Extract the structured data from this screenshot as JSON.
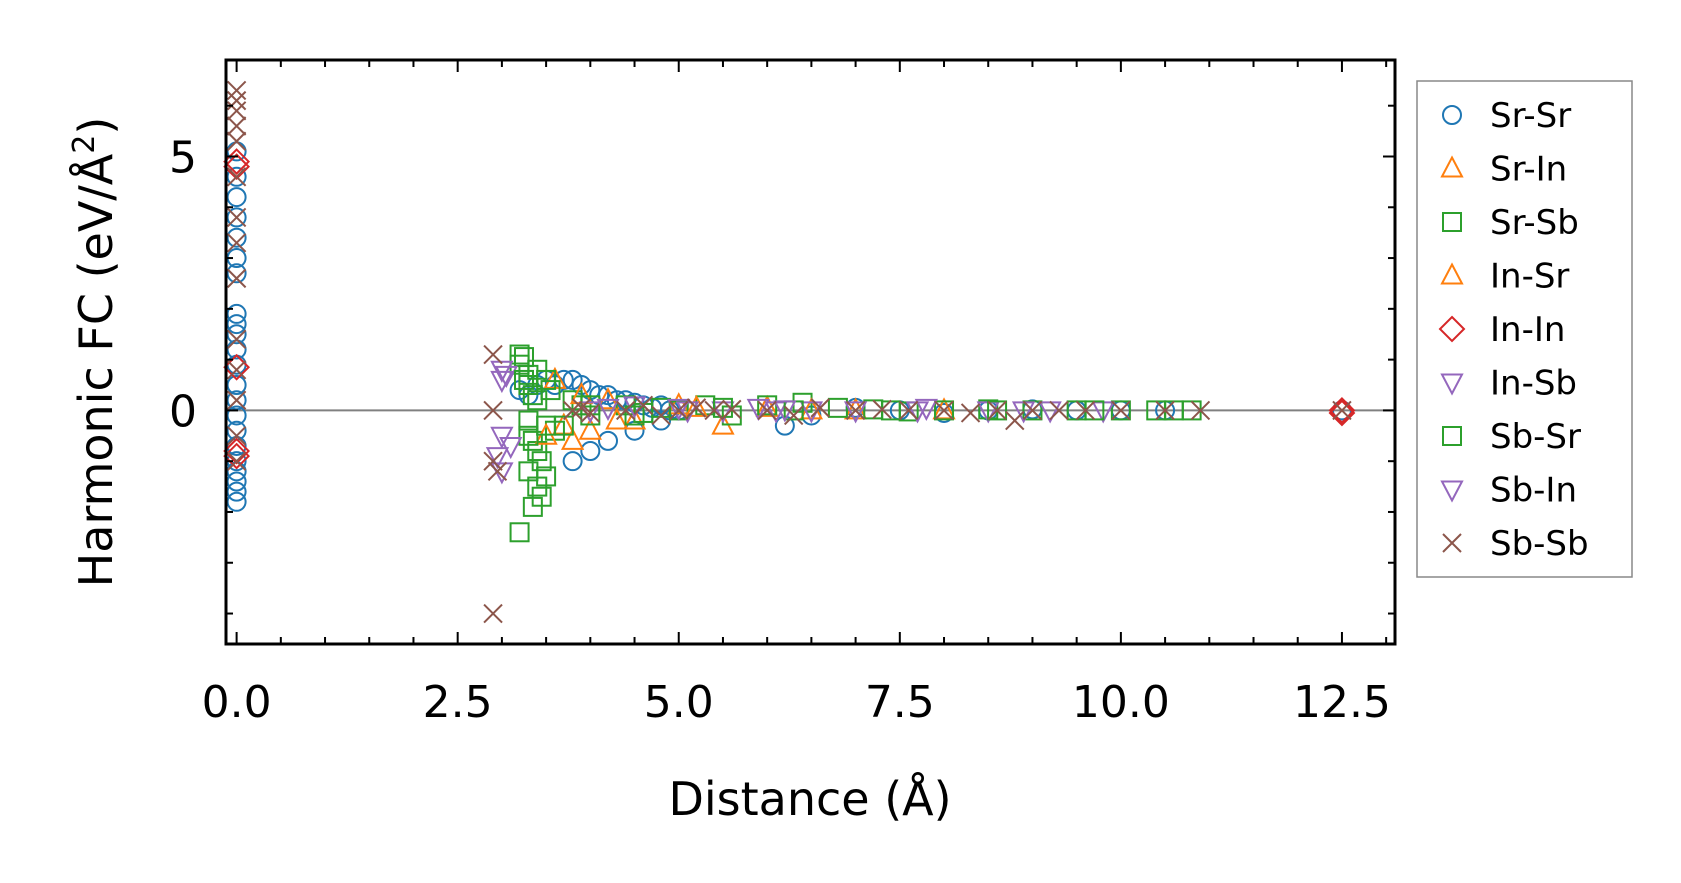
{
  "chart_data": {
    "type": "scatter",
    "title": "",
    "xlabel": "Distance (Å)",
    "ylabel_main": "Harmonic FC (eV/Å",
    "ylabel_sup": "2",
    "ylabel_close": ")",
    "xlim": [
      -0.12,
      13.1
    ],
    "ylim": [
      -4.6,
      6.9
    ],
    "xticks": [
      0.0,
      2.5,
      5.0,
      7.5,
      10.0,
      12.5
    ],
    "xtick_labels": [
      "0.0",
      "2.5",
      "5.0",
      "7.5",
      "10.0",
      "12.5"
    ],
    "yticks": [
      0,
      5
    ],
    "ytick_labels": [
      "0",
      "5"
    ],
    "x_minor_step": 0.5,
    "y_minor_step": 1,
    "zero_line": true,
    "legend_position": "right-outside",
    "series": [
      {
        "name": "Sr-Sr",
        "marker": "circle",
        "color": "#1f77b4",
        "x": [
          0,
          0,
          0,
          0,
          0,
          0,
          0,
          0,
          0,
          0,
          0,
          0,
          0,
          0,
          0,
          0,
          0,
          0,
          0,
          0,
          0,
          0,
          3.2,
          3.3,
          3.4,
          3.5,
          3.6,
          3.7,
          3.8,
          3.9,
          4.0,
          4.1,
          4.2,
          4.3,
          4.4,
          4.5,
          4.6,
          4.7,
          4.8,
          4.9,
          5.0,
          3.8,
          4.0,
          4.2,
          4.5,
          4.8,
          6.2,
          6.5,
          7.0,
          7.5,
          8.0,
          8.5,
          9.0,
          9.5,
          10.0,
          10.5,
          12.5
        ],
        "y": [
          5.1,
          4.6,
          4.2,
          3.8,
          3.4,
          3.0,
          2.7,
          1.9,
          1.7,
          1.5,
          1.2,
          0.9,
          0.5,
          0.2,
          -0.1,
          -0.4,
          -0.7,
          -1.0,
          -1.2,
          -1.4,
          -1.6,
          -1.8,
          0.4,
          0.3,
          0.5,
          0.6,
          0.5,
          0.6,
          0.6,
          0.5,
          0.4,
          0.3,
          0.3,
          0.2,
          0.2,
          0.15,
          0.1,
          0.05,
          0.1,
          0.0,
          0.0,
          -1.0,
          -0.8,
          -0.6,
          -0.4,
          -0.2,
          -0.3,
          -0.1,
          0.05,
          0.0,
          -0.05,
          0.0,
          0.02,
          0.0,
          0.0,
          0.0,
          0.0
        ]
      },
      {
        "name": "Sr-In",
        "marker": "triangle-up",
        "color": "#ff7f0e",
        "x": [
          3.6,
          3.7,
          3.8,
          4.0,
          4.2,
          4.5,
          5.0,
          5.5,
          6.0,
          7.0,
          8.0
        ],
        "y": [
          0.6,
          -0.3,
          -0.6,
          -0.4,
          0.2,
          -0.2,
          0.1,
          -0.3,
          0.05,
          0.0,
          0.0
        ]
      },
      {
        "name": "Sr-Sb",
        "marker": "square",
        "color": "#2ca02c",
        "x": [
          3.2,
          3.2,
          3.25,
          3.3,
          3.3,
          3.35,
          3.3,
          3.35,
          3.4,
          3.45,
          3.5,
          3.4,
          3.45,
          3.2,
          3.3,
          3.35,
          3.4,
          3.5,
          3.55,
          3.6,
          3.7,
          3.8,
          3.9,
          4.0,
          4.4,
          4.6,
          4.8,
          5.0,
          5.3,
          5.6,
          6.0,
          6.4,
          6.8,
          7.2,
          7.6,
          8.0,
          8.5,
          9.0,
          9.5,
          10.0,
          10.4,
          10.8
        ],
        "y": [
          1.1,
          0.9,
          1.05,
          0.7,
          0.5,
          0.3,
          -0.2,
          -0.6,
          -0.8,
          -1.0,
          -1.3,
          -1.5,
          -1.7,
          -2.4,
          -1.2,
          -1.9,
          0.8,
          0.6,
          0.4,
          -0.4,
          -0.3,
          0.2,
          0.1,
          -0.1,
          0.1,
          -0.05,
          0.05,
          0.0,
          0.1,
          -0.1,
          0.1,
          0.15,
          0.05,
          0.02,
          -0.02,
          0.0,
          0.02,
          0.0,
          0.0,
          0.0,
          0.0,
          0.0
        ]
      },
      {
        "name": "In-Sr",
        "marker": "triangle-up",
        "color": "#ff7f0e",
        "x": [
          3.5,
          3.9,
          4.3,
          5.2,
          6.5
        ],
        "y": [
          -0.5,
          0.3,
          -0.2,
          0.05,
          0.0
        ]
      },
      {
        "name": "In-In",
        "marker": "diamond",
        "color": "#d62728",
        "x": [
          0,
          0,
          0,
          0,
          0,
          12.5,
          12.5
        ],
        "y": [
          4.9,
          4.8,
          0.85,
          -0.8,
          -0.9,
          0.0,
          -0.05
        ]
      },
      {
        "name": "In-Sb",
        "marker": "triangle-down",
        "color": "#9467bd",
        "x": [
          3.0,
          3.05,
          3.0,
          2.95,
          3.0,
          4.0,
          4.5,
          5.0,
          5.5,
          5.9,
          6.1,
          6.5,
          7.0,
          7.8,
          8.5,
          9.2,
          9.8
        ],
        "y": [
          0.8,
          0.7,
          -0.5,
          -0.9,
          -1.2,
          0.0,
          0.1,
          0.05,
          0.0,
          0.05,
          0.0,
          0.0,
          0.0,
          0.05,
          0.0,
          0.0,
          0.0
        ]
      },
      {
        "name": "Sb-Sr",
        "marker": "square",
        "color": "#2ca02c",
        "x": [
          3.25,
          3.3,
          3.4,
          3.5,
          4.0,
          4.5,
          5.5,
          6.3,
          7.4,
          8.6,
          9.7,
          10.6
        ],
        "y": [
          0.6,
          -0.5,
          0.2,
          -0.3,
          0.1,
          -0.1,
          0.05,
          0.0,
          0.0,
          0.0,
          0.0,
          0.0
        ]
      },
      {
        "name": "Sb-In",
        "marker": "triangle-down",
        "color": "#9467bd",
        "x": [
          3.0,
          3.1,
          4.2,
          5.1,
          6.2,
          7.7,
          8.9
        ],
        "y": [
          0.6,
          -0.7,
          0.05,
          0.0,
          0.02,
          0.0,
          0.0
        ]
      },
      {
        "name": "Sb-Sb",
        "marker": "x",
        "color": "#8c564b",
        "x": [
          0,
          0,
          0,
          0,
          0,
          0,
          0,
          0,
          0,
          0,
          0,
          0,
          0,
          0,
          2.9,
          2.9,
          2.9,
          2.95,
          2.9,
          3.8,
          3.9,
          4.0,
          4.4,
          4.6,
          4.8,
          5.0,
          5.2,
          5.4,
          5.6,
          6.0,
          6.3,
          6.6,
          7.0,
          7.3,
          7.6,
          8.0,
          8.3,
          8.6,
          8.8,
          9.0,
          9.3,
          9.6,
          10.0,
          10.5,
          10.9,
          12.5
        ],
        "y": [
          6.3,
          6.1,
          5.9,
          5.6,
          5.3,
          4.6,
          3.8,
          3.3,
          2.6,
          1.4,
          0.8,
          0.2,
          -0.5,
          -1.0,
          1.1,
          0.0,
          -1.0,
          -1.2,
          -4.0,
          0.0,
          0.05,
          -0.05,
          0.0,
          0.1,
          -0.1,
          0.0,
          0.05,
          0.0,
          0.02,
          0.0,
          -0.1,
          0.05,
          0.0,
          0.02,
          0.0,
          0.0,
          -0.05,
          0.0,
          -0.2,
          0.0,
          0.0,
          0.0,
          0.0,
          0.0,
          0.0,
          0.0
        ]
      }
    ]
  }
}
